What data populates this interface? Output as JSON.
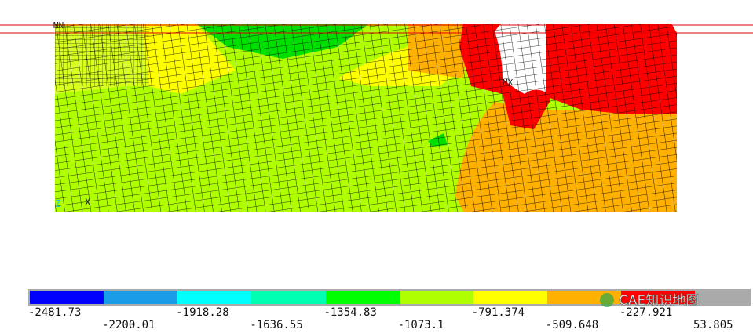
{
  "plot": {
    "min_label": "MN",
    "max_label": "MX",
    "triad": [
      "Z",
      "X"
    ]
  },
  "legend": {
    "labels": [
      "-2481.73",
      "-2200.01",
      "-1918.28",
      "-1636.55",
      "-1354.83",
      "-1073.1",
      "-791.374",
      "-509.648",
      "-227.921",
      "53.805"
    ]
  },
  "watermark": "CAE知识地图"
}
